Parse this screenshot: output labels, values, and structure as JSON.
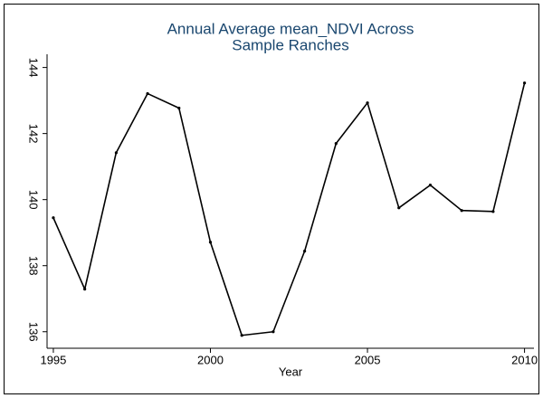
{
  "chart_data": {
    "type": "line",
    "title": [
      "Annual Average mean_NDVI Across",
      "Sample Ranches"
    ],
    "x_label": "Year",
    "x": [
      1995,
      1996,
      1997,
      1998,
      1999,
      2000,
      2001,
      2002,
      2003,
      2004,
      2005,
      2006,
      2007,
      2008,
      2009,
      2010
    ],
    "values": [
      139.45,
      137.29,
      141.42,
      143.21,
      142.77,
      138.71,
      135.89,
      136.0,
      138.44,
      141.7,
      142.93,
      139.75,
      140.44,
      139.67,
      139.64,
      143.53
    ],
    "color": "#000000",
    "xlim": [
      1994.8,
      2010.3
    ],
    "xticks": [
      1995,
      2000,
      2005,
      2010
    ],
    "ylim": [
      135.5,
      144.4
    ],
    "yticks": [
      136,
      138,
      140,
      142,
      144
    ],
    "grid": false
  }
}
